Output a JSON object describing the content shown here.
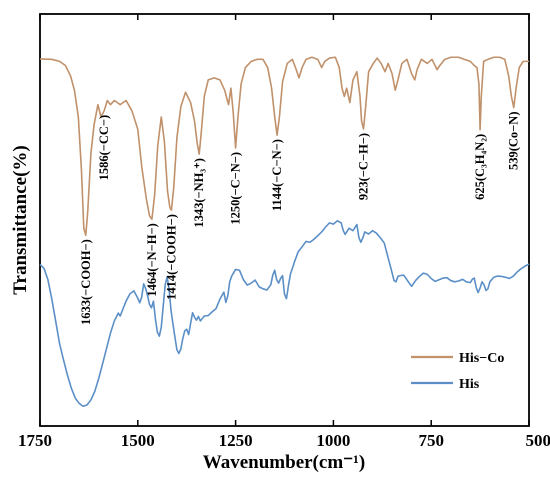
{
  "chart_data": {
    "type": "line",
    "xlabel": "Wavenumber(cm⁻¹)",
    "ylabel": "Transmittance(%)",
    "xlim": [
      1750,
      500
    ],
    "ylim": [
      0,
      100
    ],
    "x_reversed": true,
    "y_ticks_shown": false,
    "xticks": [
      1750,
      1500,
      1250,
      1000,
      750,
      500
    ],
    "grid": false,
    "legend_position": "bottom-right",
    "series": [
      {
        "name": "His−Co",
        "color": "#c0916a",
        "points": [
          [
            1750,
            89.1
          ],
          [
            1720,
            89.0
          ],
          [
            1700,
            88.5
          ],
          [
            1685,
            87.5
          ],
          [
            1672,
            85.0
          ],
          [
            1662,
            81.5
          ],
          [
            1652,
            75.0
          ],
          [
            1644,
            62.0
          ],
          [
            1638,
            48.0
          ],
          [
            1633,
            46.3
          ],
          [
            1628,
            52.0
          ],
          [
            1620,
            66.0
          ],
          [
            1612,
            73.0
          ],
          [
            1602,
            78.0
          ],
          [
            1594,
            75.0
          ],
          [
            1586,
            76.5
          ],
          [
            1578,
            79.0
          ],
          [
            1570,
            78.0
          ],
          [
            1560,
            79.0
          ],
          [
            1545,
            78.0
          ],
          [
            1530,
            79.0
          ],
          [
            1515,
            76.5
          ],
          [
            1500,
            72.0
          ],
          [
            1490,
            63.0
          ],
          [
            1478,
            55.0
          ],
          [
            1470,
            51.0
          ],
          [
            1464,
            50.2
          ],
          [
            1457,
            56.0
          ],
          [
            1449,
            68.0
          ],
          [
            1440,
            75.0
          ],
          [
            1432,
            69.0
          ],
          [
            1424,
            57.0
          ],
          [
            1418,
            53.0
          ],
          [
            1414,
            52.4
          ],
          [
            1408,
            58.0
          ],
          [
            1400,
            70.0
          ],
          [
            1390,
            77.5
          ],
          [
            1378,
            81.0
          ],
          [
            1365,
            78.5
          ],
          [
            1355,
            74.0
          ],
          [
            1348,
            68.5
          ],
          [
            1343,
            66.0
          ],
          [
            1338,
            71.0
          ],
          [
            1330,
            80.0
          ],
          [
            1320,
            84.0
          ],
          [
            1305,
            84.5
          ],
          [
            1290,
            84.0
          ],
          [
            1278,
            81.5
          ],
          [
            1268,
            78.0
          ],
          [
            1262,
            82.0
          ],
          [
            1256,
            76.0
          ],
          [
            1250,
            67.5
          ],
          [
            1244,
            75.0
          ],
          [
            1236,
            83.0
          ],
          [
            1225,
            87.0
          ],
          [
            1210,
            88.5
          ],
          [
            1195,
            89.0
          ],
          [
            1180,
            89.0
          ],
          [
            1168,
            87.0
          ],
          [
            1158,
            82.0
          ],
          [
            1150,
            75.0
          ],
          [
            1144,
            70.6
          ],
          [
            1138,
            75.0
          ],
          [
            1130,
            83.5
          ],
          [
            1118,
            88.0
          ],
          [
            1105,
            89.0
          ],
          [
            1095,
            86.5
          ],
          [
            1088,
            84.5
          ],
          [
            1080,
            87.0
          ],
          [
            1070,
            89.0
          ],
          [
            1055,
            89.5
          ],
          [
            1040,
            89.0
          ],
          [
            1030,
            87.0
          ],
          [
            1022,
            88.5
          ],
          [
            1010,
            89.3
          ],
          [
            995,
            89.5
          ],
          [
            985,
            87.0
          ],
          [
            978,
            82.0
          ],
          [
            972,
            80.0
          ],
          [
            966,
            82.0
          ],
          [
            958,
            78.5
          ],
          [
            950,
            84.0
          ],
          [
            940,
            86.0
          ],
          [
            932,
            80.0
          ],
          [
            928,
            74.0
          ],
          [
            923,
            72.1
          ],
          [
            918,
            77.0
          ],
          [
            910,
            86.0
          ],
          [
            898,
            88.0
          ],
          [
            888,
            89.3
          ],
          [
            878,
            88.0
          ],
          [
            868,
            86.0
          ],
          [
            860,
            88.0
          ],
          [
            850,
            85.5
          ],
          [
            842,
            81.5
          ],
          [
            835,
            84.0
          ],
          [
            825,
            88.0
          ],
          [
            812,
            89.0
          ],
          [
            800,
            85.5
          ],
          [
            792,
            84.0
          ],
          [
            786,
            86.5
          ],
          [
            775,
            89.0
          ],
          [
            760,
            88.0
          ],
          [
            748,
            89.0
          ],
          [
            735,
            86.5
          ],
          [
            728,
            87.5
          ],
          [
            715,
            89.0
          ],
          [
            700,
            89.5
          ],
          [
            680,
            89.5
          ],
          [
            665,
            89.0
          ],
          [
            650,
            88.5
          ],
          [
            640,
            87.5
          ],
          [
            633,
            87.0
          ],
          [
            628,
            83.0
          ],
          [
            625,
            71.9
          ],
          [
            622,
            80.0
          ],
          [
            616,
            88.5
          ],
          [
            605,
            89.0
          ],
          [
            590,
            89.5
          ],
          [
            575,
            89.5
          ],
          [
            562,
            89.0
          ],
          [
            552,
            85.0
          ],
          [
            545,
            80.0
          ],
          [
            539,
            77.3
          ],
          [
            533,
            82.0
          ],
          [
            525,
            87.0
          ],
          [
            515,
            88.5
          ],
          [
            500,
            88.5
          ]
        ]
      },
      {
        "name": "His",
        "color": "#5b8fc7",
        "points": [
          [
            1750,
            39.2
          ],
          [
            1740,
            38.3
          ],
          [
            1730,
            35.6
          ],
          [
            1720,
            30.9
          ],
          [
            1710,
            25.5
          ],
          [
            1700,
            20.0
          ],
          [
            1690,
            16.1
          ],
          [
            1680,
            12.4
          ],
          [
            1670,
            9.2
          ],
          [
            1660,
            6.8
          ],
          [
            1650,
            5.5
          ],
          [
            1640,
            4.8
          ],
          [
            1630,
            5.1
          ],
          [
            1620,
            6.3
          ],
          [
            1610,
            8.4
          ],
          [
            1600,
            11.5
          ],
          [
            1590,
            15.1
          ],
          [
            1580,
            18.8
          ],
          [
            1570,
            22.5
          ],
          [
            1560,
            25.5
          ],
          [
            1550,
            27.4
          ],
          [
            1545,
            26.7
          ],
          [
            1538,
            28.4
          ],
          [
            1530,
            30.3
          ],
          [
            1520,
            32.1
          ],
          [
            1510,
            32.8
          ],
          [
            1500,
            31.0
          ],
          [
            1495,
            29.9
          ],
          [
            1490,
            31.3
          ],
          [
            1485,
            34.5
          ],
          [
            1480,
            33.4
          ],
          [
            1475,
            31.6
          ],
          [
            1470,
            29.5
          ],
          [
            1465,
            28.7
          ],
          [
            1460,
            30.3
          ],
          [
            1455,
            26.0
          ],
          [
            1450,
            22.8
          ],
          [
            1445,
            21.8
          ],
          [
            1440,
            24.0
          ],
          [
            1435,
            29.1
          ],
          [
            1430,
            34.3
          ],
          [
            1425,
            36.2
          ],
          [
            1420,
            33.2
          ],
          [
            1415,
            28.0
          ],
          [
            1410,
            24.7
          ],
          [
            1405,
            21.5
          ],
          [
            1400,
            18.5
          ],
          [
            1395,
            17.6
          ],
          [
            1390,
            18.7
          ],
          [
            1385,
            21.2
          ],
          [
            1380,
            23.1
          ],
          [
            1375,
            23.5
          ],
          [
            1370,
            22.2
          ],
          [
            1365,
            24.9
          ],
          [
            1360,
            27.5
          ],
          [
            1355,
            26.4
          ],
          [
            1350,
            25.7
          ],
          [
            1345,
            26.6
          ],
          [
            1340,
            25.5
          ],
          [
            1330,
            26.7
          ],
          [
            1320,
            26.8
          ],
          [
            1310,
            27.7
          ],
          [
            1300,
            28.5
          ],
          [
            1290,
            30.8
          ],
          [
            1280,
            32.5
          ],
          [
            1275,
            30.0
          ],
          [
            1270,
            31.6
          ],
          [
            1265,
            35.0
          ],
          [
            1260,
            36.4
          ],
          [
            1250,
            38.0
          ],
          [
            1240,
            37.8
          ],
          [
            1230,
            35.5
          ],
          [
            1220,
            34.2
          ],
          [
            1210,
            34.7
          ],
          [
            1200,
            35.4
          ],
          [
            1190,
            33.8
          ],
          [
            1180,
            33.3
          ],
          [
            1170,
            33.0
          ],
          [
            1160,
            34.3
          ],
          [
            1155,
            36.6
          ],
          [
            1150,
            37.8
          ],
          [
            1145,
            35.5
          ],
          [
            1140,
            34.7
          ],
          [
            1135,
            35.8
          ],
          [
            1130,
            36.5
          ],
          [
            1125,
            32.0
          ],
          [
            1120,
            30.9
          ],
          [
            1115,
            34.0
          ],
          [
            1110,
            36.8
          ],
          [
            1100,
            39.7
          ],
          [
            1090,
            42.3
          ],
          [
            1080,
            43.5
          ],
          [
            1070,
            44.8
          ],
          [
            1060,
            44.6
          ],
          [
            1050,
            45.3
          ],
          [
            1040,
            46.2
          ],
          [
            1030,
            47.1
          ],
          [
            1020,
            48.3
          ],
          [
            1010,
            49.3
          ],
          [
            1000,
            49.0
          ],
          [
            990,
            49.8
          ],
          [
            980,
            49.3
          ],
          [
            975,
            47.5
          ],
          [
            970,
            46.5
          ],
          [
            960,
            48.0
          ],
          [
            950,
            47.4
          ],
          [
            940,
            48.9
          ],
          [
            935,
            45.8
          ],
          [
            930,
            44.6
          ],
          [
            925,
            45.6
          ],
          [
            920,
            47.1
          ],
          [
            910,
            46.6
          ],
          [
            900,
            47.4
          ],
          [
            890,
            46.8
          ],
          [
            880,
            45.7
          ],
          [
            870,
            44.4
          ],
          [
            860,
            40.8
          ],
          [
            850,
            37.2
          ],
          [
            845,
            35.3
          ],
          [
            840,
            35.0
          ],
          [
            835,
            36.3
          ],
          [
            830,
            36.5
          ],
          [
            820,
            36.6
          ],
          [
            810,
            35.2
          ],
          [
            800,
            33.9
          ],
          [
            790,
            35.3
          ],
          [
            780,
            36.3
          ],
          [
            770,
            37.1
          ],
          [
            760,
            36.8
          ],
          [
            750,
            35.8
          ],
          [
            740,
            35.1
          ],
          [
            730,
            35.5
          ],
          [
            720,
            35.9
          ],
          [
            710,
            36.0
          ],
          [
            700,
            35.3
          ],
          [
            690,
            35.0
          ],
          [
            680,
            35.2
          ],
          [
            670,
            35.6
          ],
          [
            660,
            35.0
          ],
          [
            650,
            34.8
          ],
          [
            645,
            35.6
          ],
          [
            640,
            35.9
          ],
          [
            635,
            33.6
          ],
          [
            630,
            32.4
          ],
          [
            625,
            33.5
          ],
          [
            620,
            35.0
          ],
          [
            615,
            34.3
          ],
          [
            610,
            32.9
          ],
          [
            605,
            33.3
          ],
          [
            600,
            35.0
          ],
          [
            590,
            36.1
          ],
          [
            580,
            36.4
          ],
          [
            570,
            36.3
          ],
          [
            560,
            36.1
          ],
          [
            550,
            35.8
          ],
          [
            540,
            36.4
          ],
          [
            530,
            37.4
          ],
          [
            520,
            38.2
          ],
          [
            510,
            38.8
          ],
          [
            500,
            39.3
          ]
        ]
      }
    ],
    "annotations": [
      {
        "x": 1633,
        "text": "1633(−COOH−)"
      },
      {
        "x": 1586,
        "text": "1586(−CC−)"
      },
      {
        "x": 1464,
        "text": "1464(−N−H−)"
      },
      {
        "x": 1414,
        "text": "1414(−COOH−)"
      },
      {
        "x": 1343,
        "text": "1343(−NH₃⁺)"
      },
      {
        "x": 1250,
        "text": "1250(−C−N−)"
      },
      {
        "x": 1144,
        "text": "1144(−C−N−)"
      },
      {
        "x": 923,
        "text": "923(−C−H−)"
      },
      {
        "x": 625,
        "text": "625(C₃H₄N₂)"
      },
      {
        "x": 539,
        "text": "539(Co−N)"
      }
    ]
  }
}
